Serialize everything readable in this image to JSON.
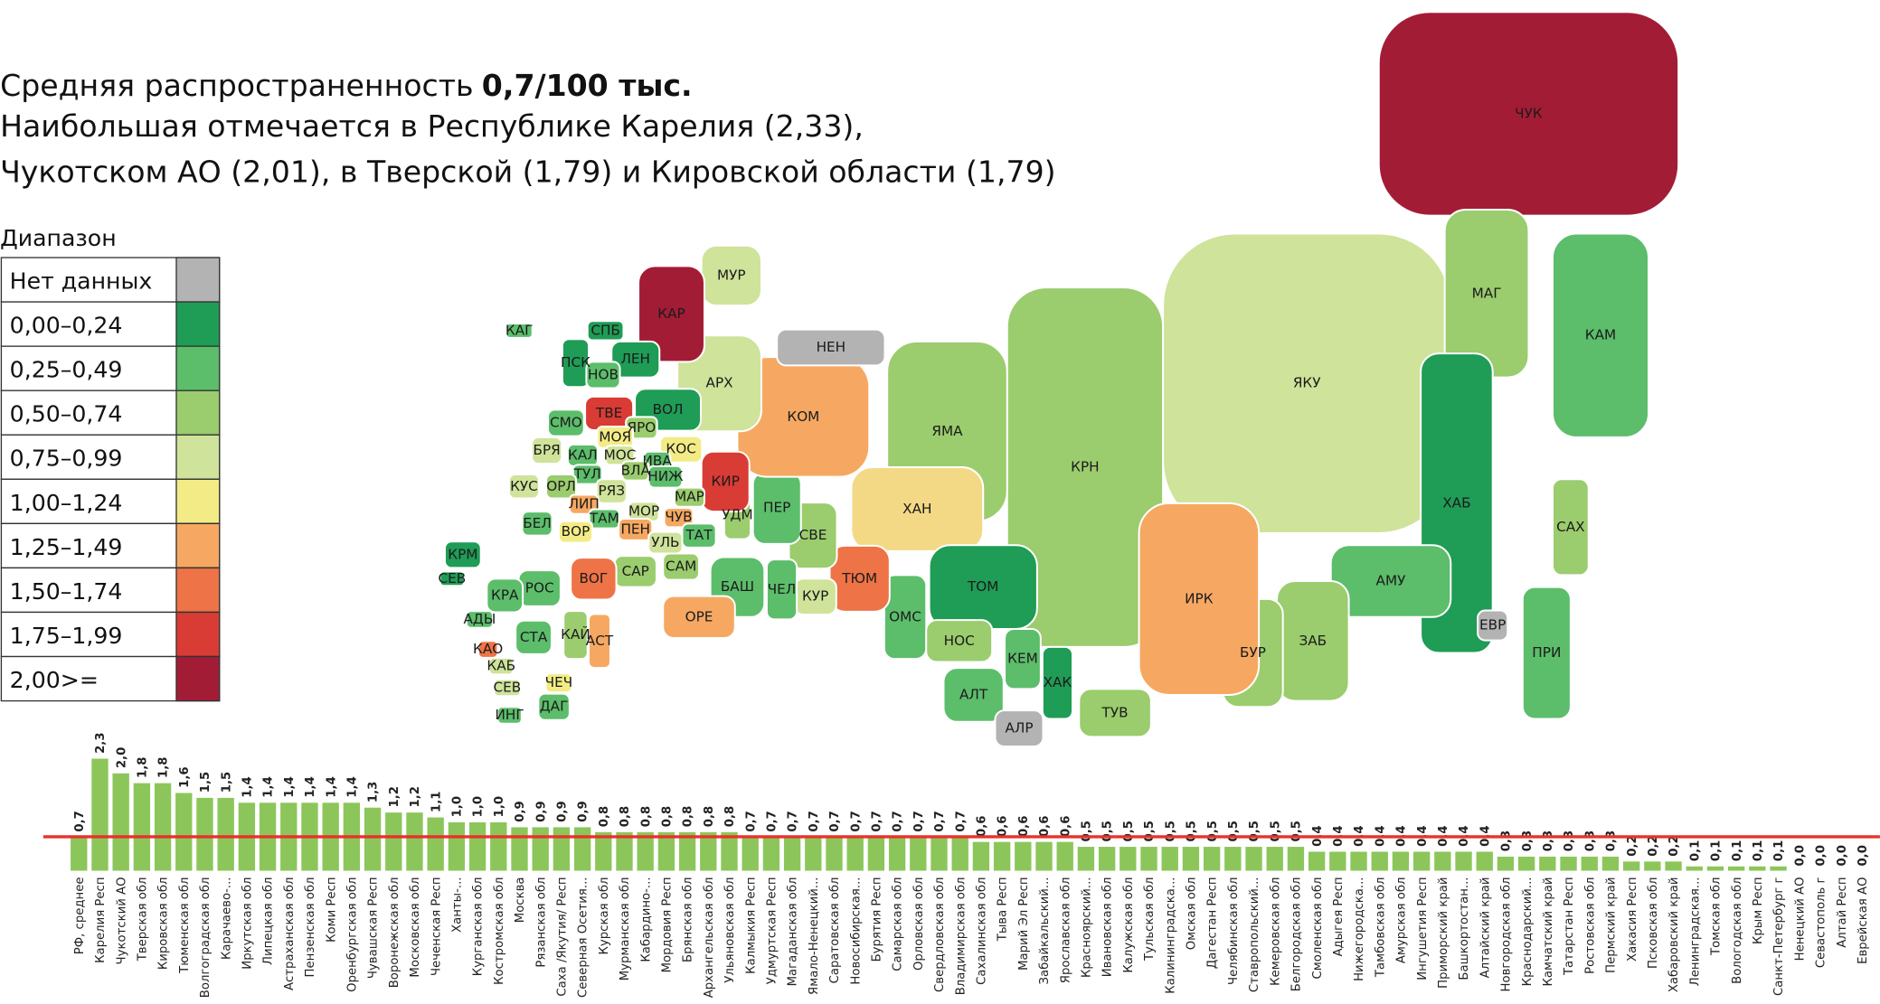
{
  "header": {
    "title_lines": [
      "Средняя распространенность",
      "Наибольшая отмечается в Республике Карелия (2,33),",
      "Чукотском АО (2,01), в Тверской (1,79) и Кировской области (1,79)"
    ],
    "title_bold": "0,7/100 тыс."
  },
  "legend": {
    "title": "Диапазон",
    "items": [
      {
        "label": "Нет данных",
        "color": "#b3b3b3"
      },
      {
        "label": "0,00–0,24",
        "color": "#1f9c55"
      },
      {
        "label": "0,25–0,49",
        "color": "#5cbd6b"
      },
      {
        "label": "0,50–0,74",
        "color": "#9bcc6e"
      },
      {
        "label": "0,75–0,99",
        "color": "#cfe39a"
      },
      {
        "label": "1,00–1,24",
        "color": "#f3ec86"
      },
      {
        "label": "1,25–1,49",
        "color": "#f6a862"
      },
      {
        "label": "1,50–1,74",
        "color": "#ee7346"
      },
      {
        "label": "1,75–1,99",
        "color": "#d93c35"
      },
      {
        "label": "2,00>=",
        "color": "#a31c36"
      }
    ]
  },
  "map": {
    "regions": [
      {
        "label": "КРН",
        "color": "#9bcc6e"
      },
      {
        "label": "ЯКУ",
        "color": "#cfe39a"
      },
      {
        "label": "ЧУК",
        "color": "#a31c36"
      },
      {
        "label": "КАМ",
        "color": "#5cbd6b"
      },
      {
        "label": "МАГ",
        "color": "#9bcc6e"
      },
      {
        "label": "ХАБ",
        "color": "#1f9c55"
      },
      {
        "label": "САХ",
        "color": "#9bcc6e"
      },
      {
        "label": "АМУ",
        "color": "#5cbd6b"
      },
      {
        "label": "ЕВР",
        "color": "#b3b3b3"
      },
      {
        "label": "ПРИ",
        "color": "#5cbd6b"
      },
      {
        "label": "ЗАБ",
        "color": "#9bcc6e"
      },
      {
        "label": "БУР",
        "color": "#9bcc6e"
      },
      {
        "label": "ИРК",
        "color": "#f6a862"
      },
      {
        "label": "ЯМА",
        "color": "#9bcc6e"
      },
      {
        "label": "ХАН",
        "color": "#f3d886"
      },
      {
        "label": "ТОМ",
        "color": "#1f9c55"
      },
      {
        "label": "ОМС",
        "color": "#5cbd6b"
      },
      {
        "label": "НОС",
        "color": "#9bcc6e"
      },
      {
        "label": "КЕМ",
        "color": "#5cbd6b"
      },
      {
        "label": "ХАК",
        "color": "#1f9c55"
      },
      {
        "label": "ТУВ",
        "color": "#9bcc6e"
      },
      {
        "label": "АЛТ",
        "color": "#5cbd6b"
      },
      {
        "label": "АЛР",
        "color": "#b3b3b3"
      },
      {
        "label": "ТЮМ",
        "color": "#ee7346"
      },
      {
        "label": "КУР",
        "color": "#cfe39a"
      },
      {
        "label": "СВЕ",
        "color": "#9bcc6e"
      },
      {
        "label": "ПЕР",
        "color": "#5cbd6b"
      },
      {
        "label": "КОМ",
        "color": "#f6a862"
      },
      {
        "label": "НЕН",
        "color": "#b3b3b3"
      },
      {
        "label": "АРХ",
        "color": "#cfe39a"
      },
      {
        "label": "МУР",
        "color": "#cfe39a"
      },
      {
        "label": "КАР",
        "color": "#a31c36"
      },
      {
        "label": "ЧЕЛ",
        "color": "#5cbd6b"
      },
      {
        "label": "БАШ",
        "color": "#5cbd6b"
      },
      {
        "label": "ОРЕ",
        "color": "#f6a862"
      },
      {
        "label": "УДМ",
        "color": "#9bcc6e"
      },
      {
        "label": "КИР",
        "color": "#d93c35"
      },
      {
        "label": "ВОЛ",
        "color": "#1f9c55"
      },
      {
        "label": "ЛЕН",
        "color": "#1f9c55"
      },
      {
        "label": "СПБ",
        "color": "#1f9c55"
      },
      {
        "label": "ПСК",
        "color": "#1f9c55"
      },
      {
        "label": "НОВ",
        "color": "#5cbd6b"
      },
      {
        "label": "ТВЕ",
        "color": "#d93c35"
      },
      {
        "label": "ЯРО",
        "color": "#9bcc6e"
      },
      {
        "label": "СМО",
        "color": "#5cbd6b"
      },
      {
        "label": "МОЯ",
        "color": "#f3ec86"
      },
      {
        "label": "КОС",
        "color": "#f3ec86"
      },
      {
        "label": "БРЯ",
        "color": "#cfe39a"
      },
      {
        "label": "КАЛ",
        "color": "#5cbd6b"
      },
      {
        "label": "МОС",
        "color": "#cfe39a"
      },
      {
        "label": "ИВА",
        "color": "#5cbd6b"
      },
      {
        "label": "ТУЛ",
        "color": "#5cbd6b"
      },
      {
        "label": "ВЛА",
        "color": "#9bcc6e"
      },
      {
        "label": "НИЖ",
        "color": "#5cbd6b"
      },
      {
        "label": "КУС",
        "color": "#cfe39a"
      },
      {
        "label": "ОРЛ",
        "color": "#9bcc6e"
      },
      {
        "label": "РЯЗ",
        "color": "#cfe39a"
      },
      {
        "label": "МАР",
        "color": "#9bcc6e"
      },
      {
        "label": "БЕЛ",
        "color": "#5cbd6b"
      },
      {
        "label": "ЛИП",
        "color": "#f6a862"
      },
      {
        "label": "МОР",
        "color": "#cfe39a"
      },
      {
        "label": "ЧУВ",
        "color": "#f6a862"
      },
      {
        "label": "ТАМ",
        "color": "#5cbd6b"
      },
      {
        "label": "ВОР",
        "color": "#f3ec86"
      },
      {
        "label": "ПЕН",
        "color": "#f6a862"
      },
      {
        "label": "ТАТ",
        "color": "#5cbd6b"
      },
      {
        "label": "УЛЬ",
        "color": "#cfe39a"
      },
      {
        "label": "САМ",
        "color": "#9bcc6e"
      },
      {
        "label": "САР",
        "color": "#9bcc6e"
      },
      {
        "label": "ВОГ",
        "color": "#ee7346"
      },
      {
        "label": "РОС",
        "color": "#5cbd6b"
      },
      {
        "label": "КРА",
        "color": "#5cbd6b"
      },
      {
        "label": "КРМ",
        "color": "#1f9c55"
      },
      {
        "label": "СЕВ",
        "color": "#1f9c55"
      },
      {
        "label": "АДЫ",
        "color": "#5cbd6b"
      },
      {
        "label": "СТА",
        "color": "#5cbd6b"
      },
      {
        "label": "КАЙ",
        "color": "#9bcc6e"
      },
      {
        "label": "АСТ",
        "color": "#f6a862"
      },
      {
        "label": "КАО",
        "color": "#ee7346"
      },
      {
        "label": "КАБ",
        "color": "#cfe39a"
      },
      {
        "label": "СЕВ",
        "color": "#cfe39a"
      },
      {
        "label": "ЧЕЧ",
        "color": "#f3ec86"
      },
      {
        "label": "ИНГ",
        "color": "#5cbd6b"
      },
      {
        "label": "ДАГ",
        "color": "#5cbd6b"
      },
      {
        "label": "КАГ",
        "color": "#5cbd6b"
      }
    ]
  },
  "chart_data": {
    "type": "bar",
    "color": "#8cc65a",
    "ylim": [
      0,
      2.3
    ],
    "categories": [
      "РФ, среднее",
      "Карелия Респ",
      "Чукотский АО",
      "Тверская обл",
      "Кировская обл",
      "Тюменская обл",
      "Волгоградская обл",
      "Карачаево-...",
      "Иркутская обл",
      "Липецкая обл",
      "Астраханская обл",
      "Пензенская обл",
      "Коми Респ",
      "Оренбургская обл",
      "Чувашская Респ",
      "Воронежская обл",
      "Московская обл",
      "Чеченская Респ",
      "Ханты-...",
      "Курганская обл",
      "Костромская обл",
      "Москва",
      "Рязанская обл",
      "Саха /Якутия/ Респ",
      "Северная Осетия...",
      "Курская обл",
      "Мурманская обл",
      "Кабардино-...",
      "Мордовия Респ",
      "Брянская обл",
      "Архангельская обл",
      "Ульяновская обл",
      "Калмыкия Респ",
      "Удмуртская Респ",
      "Магаданская обл",
      "Ямало-Ненецкий...",
      "Саратовская обл",
      "Новосибирская...",
      "Бурятия Респ",
      "Самарская обл",
      "Орловская обл",
      "Свердловская обл",
      "Владимирская обл",
      "Сахалинская обл",
      "Тыва Респ",
      "Марий Эл Респ",
      "Забайкальский...",
      "Ярославская обл",
      "Красноярский...",
      "Ивановская обл",
      "Калужская обл",
      "Тульская обл",
      "Калининградска...",
      "Омская обл",
      "Дагестан Респ",
      "Челябинская обл",
      "Ставропольский...",
      "Кемеровская обл",
      "Белгородская обл",
      "Смоленская обл",
      "Адыгея Респ",
      "Нижегородска...",
      "Тамбовская обл",
      "Амурская обл",
      "Ингушетия Респ",
      "Приморский край",
      "Башкортостан...",
      "Алтайский край",
      "Новгородская обл",
      "Краснодарский...",
      "Камчатский край",
      "Татарстан Респ",
      "Ростовская обл",
      "Пермский край",
      "Хакасия Респ",
      "Псковская обл",
      "Хабаровский край",
      "Ленинградская...",
      "Томская обл",
      "Вологодская обл",
      "Крым Респ",
      "Санкт-Петербург г",
      "Ненецкий АО",
      "Севастополь г",
      "Алтай Респ",
      "Еврейская АО"
    ],
    "values": [
      0.7,
      2.3,
      2.0,
      1.8,
      1.8,
      1.6,
      1.5,
      1.5,
      1.4,
      1.4,
      1.4,
      1.4,
      1.4,
      1.4,
      1.3,
      1.2,
      1.2,
      1.1,
      1.0,
      1.0,
      1.0,
      0.9,
      0.9,
      0.9,
      0.9,
      0.8,
      0.8,
      0.8,
      0.8,
      0.8,
      0.8,
      0.8,
      0.7,
      0.7,
      0.7,
      0.7,
      0.7,
      0.7,
      0.7,
      0.7,
      0.7,
      0.7,
      0.7,
      0.6,
      0.6,
      0.6,
      0.6,
      0.6,
      0.5,
      0.5,
      0.5,
      0.5,
      0.5,
      0.5,
      0.5,
      0.5,
      0.5,
      0.5,
      0.5,
      0.4,
      0.4,
      0.4,
      0.4,
      0.4,
      0.4,
      0.4,
      0.4,
      0.4,
      0.3,
      0.3,
      0.3,
      0.3,
      0.3,
      0.3,
      0.2,
      0.2,
      0.2,
      0.1,
      0.1,
      0.1,
      0.1,
      0.1,
      0.0,
      0.0,
      0.0,
      0.0
    ],
    "value_labels": [
      "0,7",
      "2,3",
      "2,0",
      "1,8",
      "1,8",
      "1,6",
      "1,5",
      "1,5",
      "1,4",
      "1,4",
      "1,4",
      "1,4",
      "1,4",
      "1,4",
      "1,3",
      "1,2",
      "1,2",
      "1,1",
      "1,0",
      "1,0",
      "1,0",
      "0,9",
      "0,9",
      "0,9",
      "0,9",
      "0,8",
      "0,8",
      "0,8",
      "0,8",
      "0,8",
      "0,8",
      "0,8",
      "0,7",
      "0,7",
      "0,7",
      "0,7",
      "0,7",
      "0,7",
      "0,7",
      "0,7",
      "0,7",
      "0,7",
      "0,7",
      "0,6",
      "0,6",
      "0,6",
      "0,6",
      "0,6",
      "0,5",
      "0,5",
      "0,5",
      "0,5",
      "0,5",
      "0,5",
      "0,5",
      "0,5",
      "0,5",
      "0,5",
      "0,5",
      "0,4",
      "0,4",
      "0,4",
      "0,4",
      "0,4",
      "0,4",
      "0,4",
      "0,4",
      "0,4",
      "0,3",
      "0,3",
      "0,3",
      "0,3",
      "0,3",
      "0,3",
      "0,2",
      "0,2",
      "0,2",
      "0,1",
      "0,1",
      "0,1",
      "0,1",
      "0,1",
      "0,0",
      "0,0",
      "0,0",
      "0,0"
    ],
    "reference_color": "#e8322a"
  }
}
